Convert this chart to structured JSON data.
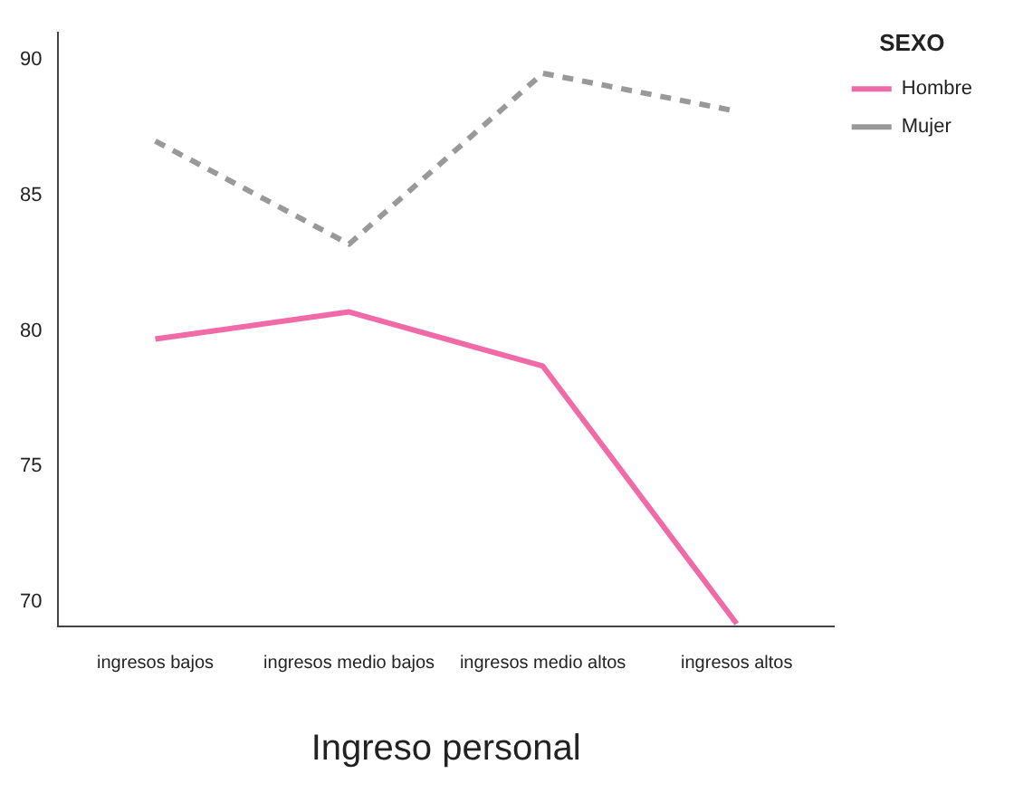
{
  "chart_data": {
    "type": "line",
    "xlabel": "Ingreso personal",
    "legend_title": "SEXO",
    "legend": "top right",
    "grid": false,
    "marker": "none",
    "categories": [
      "ingresos bajos",
      "ingresos medio bajos",
      "ingresos medio altos",
      "ingresos altos"
    ],
    "ylim": [
      69.1,
      91
    ],
    "yticks": [
      70,
      75,
      80,
      85,
      90
    ],
    "series": [
      {
        "name": "Hombre",
        "color": "#f06aa8",
        "line_style": "solid",
        "values": [
          79.7,
          80.7,
          78.7,
          69.2
        ]
      },
      {
        "name": "Mujer",
        "color": "#999999",
        "line_style": "dashed",
        "values": [
          87.0,
          83.2,
          89.5,
          88.1
        ]
      }
    ]
  }
}
